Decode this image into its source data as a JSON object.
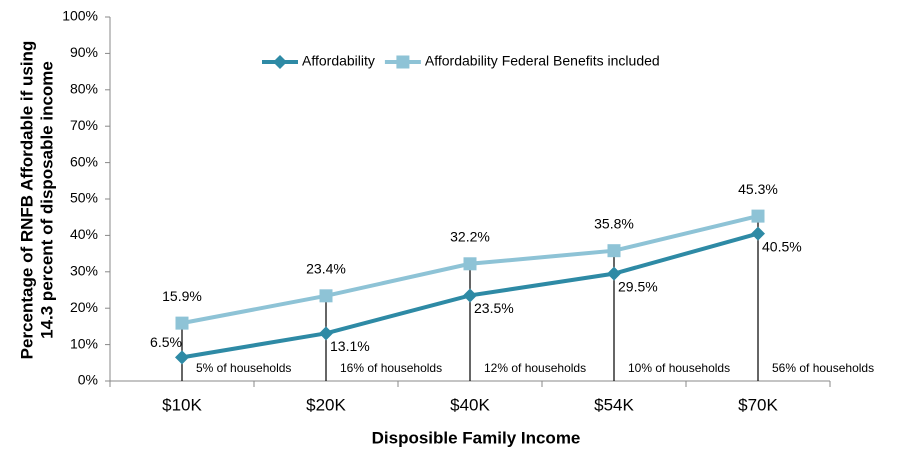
{
  "chart_data": {
    "type": "line",
    "ylabel": [
      "Percentage of RNFB Affordable if using",
      "14.3 percent of disposable income"
    ],
    "xlabel": "Disposible Family Income",
    "categories": [
      "$10K",
      "$20K",
      "$40K",
      "$54K",
      "$70K"
    ],
    "series": [
      {
        "name": "Affordability",
        "color": "#2e8aa5",
        "marker": "diamond",
        "values": [
          6.5,
          13.1,
          23.5,
          29.5,
          40.5
        ],
        "value_labels": [
          "6.5%",
          "13.1%",
          "23.5%",
          "29.5%",
          "40.5%"
        ]
      },
      {
        "name": "Affordability Federal Benefits included",
        "color": "#8ec3d6",
        "marker": "square",
        "values": [
          15.9,
          23.4,
          32.2,
          35.8,
          45.3
        ],
        "value_labels": [
          "15.9%",
          "23.4%",
          "32.2%",
          "35.8%",
          "45.3%"
        ]
      }
    ],
    "annotations": [
      "5% of households",
      "16% of households",
      "12% of households",
      "10% of households",
      "56% of households"
    ],
    "ylim": [
      0,
      100
    ],
    "yticks": [
      {
        "value": 0,
        "label": "0%"
      },
      {
        "value": 10,
        "label": "10%"
      },
      {
        "value": 20,
        "label": "20%"
      },
      {
        "value": 30,
        "label": "30%"
      },
      {
        "value": 40,
        "label": "40%"
      },
      {
        "value": 50,
        "label": "50%"
      },
      {
        "value": 60,
        "label": "60%"
      },
      {
        "value": 70,
        "label": "70%"
      },
      {
        "value": 80,
        "label": "80%"
      },
      {
        "value": 90,
        "label": "90%"
      },
      {
        "value": 100,
        "label": "100%"
      }
    ],
    "grid": false,
    "legend": "top"
  }
}
